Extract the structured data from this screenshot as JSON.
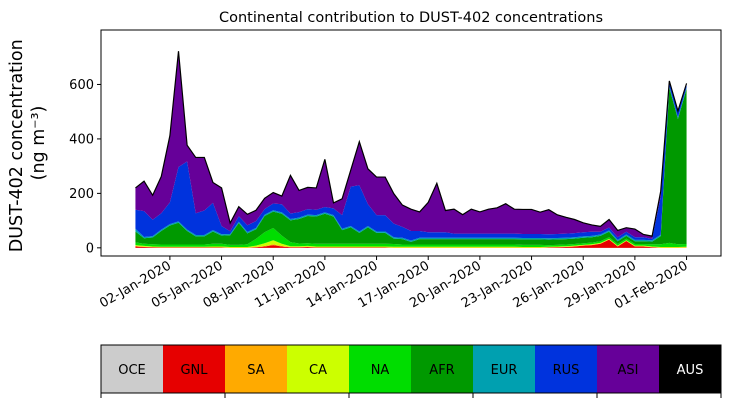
{
  "chart_data": {
    "type": "area",
    "stacked": true,
    "title": "Continental contribution to DUST-402 concentrations",
    "ylabel_line1": "DUST-402 concentration",
    "ylabel_line2": "(ng m⁻³)",
    "xlabel": "",
    "ylim": [
      -30,
      800
    ],
    "yticks": [
      0,
      200,
      400,
      600
    ],
    "x_start": "2019-12-31",
    "x_end": "2020-02-01",
    "x_range": [
      "2019-12-29",
      "2020-02-03"
    ],
    "xticks": [
      "02-Jan-2020",
      "05-Jan-2020",
      "08-Jan-2020",
      "11-Jan-2020",
      "14-Jan-2020",
      "17-Jan-2020",
      "20-Jan-2020",
      "23-Jan-2020",
      "26-Jan-2020",
      "29-Jan-2020",
      "01-Feb-2020"
    ],
    "grid": false,
    "legend_position": "bottom-colorbar",
    "series": [
      {
        "name": "OCE",
        "color": "#cccccc",
        "values": [
          0,
          0,
          0,
          0,
          0,
          0,
          0,
          0,
          0,
          0,
          0,
          0,
          0,
          0,
          0,
          0,
          0,
          0,
          0,
          0,
          0,
          0,
          0,
          0,
          0,
          0,
          0,
          0,
          0,
          0,
          0,
          0,
          0,
          0,
          0,
          0,
          0,
          0,
          0,
          0,
          0,
          0,
          0,
          0,
          0,
          0,
          0,
          0,
          0,
          0,
          0,
          0,
          0,
          0,
          0,
          0,
          0,
          0,
          0,
          0,
          0,
          0,
          0,
          0,
          0
        ]
      },
      {
        "name": "GNL",
        "color": "#e60000",
        "values": [
          5,
          3,
          2,
          1,
          1,
          1,
          1,
          1,
          1,
          1,
          1,
          0,
          0,
          0,
          2,
          5,
          10,
          5,
          2,
          2,
          3,
          1,
          1,
          1,
          1,
          1,
          1,
          1,
          1,
          1,
          0,
          0,
          0,
          0,
          0,
          0,
          0,
          0,
          0,
          0,
          0,
          0,
          0,
          0,
          0,
          0,
          0,
          0,
          1,
          2,
          3,
          5,
          8,
          10,
          15,
          30,
          5,
          25,
          5,
          5,
          2,
          0,
          0,
          0,
          0
        ]
      },
      {
        "name": "SA",
        "color": "#ffaa00",
        "values": [
          2,
          1,
          1,
          1,
          1,
          1,
          1,
          1,
          1,
          1,
          1,
          1,
          1,
          1,
          1,
          2,
          3,
          2,
          1,
          1,
          1,
          1,
          1,
          1,
          1,
          1,
          1,
          1,
          1,
          1,
          1,
          1,
          1,
          1,
          1,
          1,
          1,
          1,
          1,
          1,
          1,
          1,
          1,
          1,
          1,
          1,
          1,
          1,
          1,
          1,
          1,
          1,
          1,
          1,
          1,
          1,
          1,
          1,
          1,
          1,
          1,
          1,
          1,
          1,
          2
        ]
      },
      {
        "name": "CA",
        "color": "#ccff00",
        "values": [
          3,
          3,
          2,
          2,
          2,
          2,
          2,
          2,
          2,
          3,
          3,
          2,
          2,
          2,
          5,
          10,
          15,
          8,
          3,
          3,
          3,
          3,
          3,
          3,
          3,
          3,
          3,
          3,
          3,
          3,
          3,
          3,
          3,
          3,
          3,
          3,
          3,
          3,
          3,
          3,
          3,
          3,
          3,
          3,
          3,
          2,
          2,
          2,
          2,
          2,
          2,
          2,
          2,
          2,
          2,
          2,
          2,
          2,
          2,
          2,
          2,
          2,
          2,
          2,
          2
        ]
      },
      {
        "name": "NA",
        "color": "#00dd00",
        "values": [
          10,
          8,
          8,
          8,
          8,
          8,
          8,
          8,
          8,
          10,
          10,
          8,
          8,
          10,
          25,
          40,
          45,
          30,
          15,
          10,
          10,
          10,
          10,
          10,
          10,
          10,
          10,
          10,
          10,
          10,
          10,
          8,
          8,
          8,
          8,
          8,
          8,
          8,
          8,
          8,
          8,
          8,
          8,
          8,
          8,
          8,
          8,
          8,
          6,
          6,
          6,
          6,
          6,
          6,
          6,
          6,
          6,
          6,
          6,
          6,
          8,
          10,
          15,
          10,
          10
        ]
      },
      {
        "name": "AFR",
        "color": "#009900",
        "values": [
          40,
          20,
          25,
          50,
          70,
          80,
          50,
          30,
          30,
          45,
          30,
          35,
          80,
          40,
          35,
          60,
          60,
          80,
          80,
          90,
          100,
          100,
          110,
          100,
          50,
          60,
          40,
          60,
          40,
          40,
          20,
          20,
          10,
          20,
          20,
          20,
          20,
          20,
          20,
          20,
          20,
          20,
          20,
          20,
          20,
          20,
          20,
          20,
          20,
          20,
          20,
          20,
          20,
          20,
          20,
          20,
          10,
          10,
          10,
          10,
          10,
          30,
          570,
          460,
          570
        ]
      },
      {
        "name": "EUR",
        "color": "#00a0b0",
        "values": [
          10,
          5,
          5,
          5,
          5,
          5,
          5,
          5,
          5,
          5,
          5,
          5,
          5,
          5,
          5,
          5,
          5,
          5,
          5,
          5,
          5,
          5,
          5,
          5,
          5,
          5,
          5,
          5,
          5,
          5,
          5,
          5,
          5,
          5,
          5,
          5,
          5,
          5,
          5,
          5,
          5,
          5,
          5,
          5,
          5,
          5,
          5,
          5,
          5,
          5,
          5,
          5,
          5,
          5,
          5,
          5,
          5,
          5,
          5,
          5,
          5,
          5,
          5,
          5,
          5
        ]
      },
      {
        "name": "RUS",
        "color": "#0033dd",
        "values": [
          70,
          95,
          60,
          60,
          80,
          200,
          250,
          80,
          90,
          100,
          30,
          10,
          20,
          25,
          25,
          20,
          25,
          30,
          20,
          20,
          20,
          20,
          20,
          25,
          50,
          145,
          170,
          80,
          60,
          60,
          50,
          40,
          35,
          25,
          20,
          20,
          20,
          15,
          15,
          15,
          15,
          15,
          15,
          15,
          15,
          15,
          15,
          15,
          15,
          15,
          15,
          15,
          15,
          15,
          10,
          10,
          10,
          10,
          10,
          10,
          5,
          140,
          20,
          25,
          15
        ]
      },
      {
        "name": "ASI",
        "color": "#660099",
        "values": [
          80,
          110,
          90,
          135,
          245,
          425,
          60,
          205,
          195,
          75,
          140,
          30,
          35,
          40,
          40,
          40,
          40,
          30,
          140,
          80,
          80,
          80,
          175,
          20,
          60,
          60,
          160,
          130,
          140,
          140,
          110,
          80,
          80,
          70,
          110,
          180,
          80,
          90,
          70,
          90,
          80,
          90,
          95,
          110,
          90,
          90,
          90,
          80,
          90,
          70,
          60,
          50,
          35,
          25,
          20,
          30,
          25,
          15,
          30,
          10,
          10,
          20,
          0,
          0,
          0
        ]
      },
      {
        "name": "AUS",
        "color": "#000000",
        "values": [
          0,
          0,
          0,
          0,
          0,
          0,
          0,
          0,
          0,
          0,
          0,
          0,
          0,
          0,
          0,
          0,
          0,
          0,
          0,
          0,
          0,
          0,
          0,
          0,
          0,
          0,
          0,
          0,
          0,
          0,
          0,
          0,
          0,
          0,
          0,
          0,
          0,
          0,
          0,
          0,
          0,
          0,
          0,
          0,
          0,
          0,
          0,
          0,
          0,
          0,
          0,
          0,
          0,
          0,
          0,
          0,
          0,
          0,
          0,
          0,
          0,
          0,
          0,
          0,
          0
        ]
      }
    ],
    "legend": [
      {
        "label": "OCE",
        "color": "#cccccc",
        "text_color": "#000000"
      },
      {
        "label": "GNL",
        "color": "#e60000",
        "text_color": "#000000"
      },
      {
        "label": "SA",
        "color": "#ffaa00",
        "text_color": "#000000"
      },
      {
        "label": "CA",
        "color": "#ccff00",
        "text_color": "#000000"
      },
      {
        "label": "NA",
        "color": "#00dd00",
        "text_color": "#000000"
      },
      {
        "label": "AFR",
        "color": "#009900",
        "text_color": "#000000"
      },
      {
        "label": "EUR",
        "color": "#00a0b0",
        "text_color": "#000000"
      },
      {
        "label": "RUS",
        "color": "#0033dd",
        "text_color": "#000000"
      },
      {
        "label": "ASI",
        "color": "#660099",
        "text_color": "#000000"
      },
      {
        "label": "AUS",
        "color": "#000000",
        "text_color": "#ffffff"
      }
    ]
  }
}
